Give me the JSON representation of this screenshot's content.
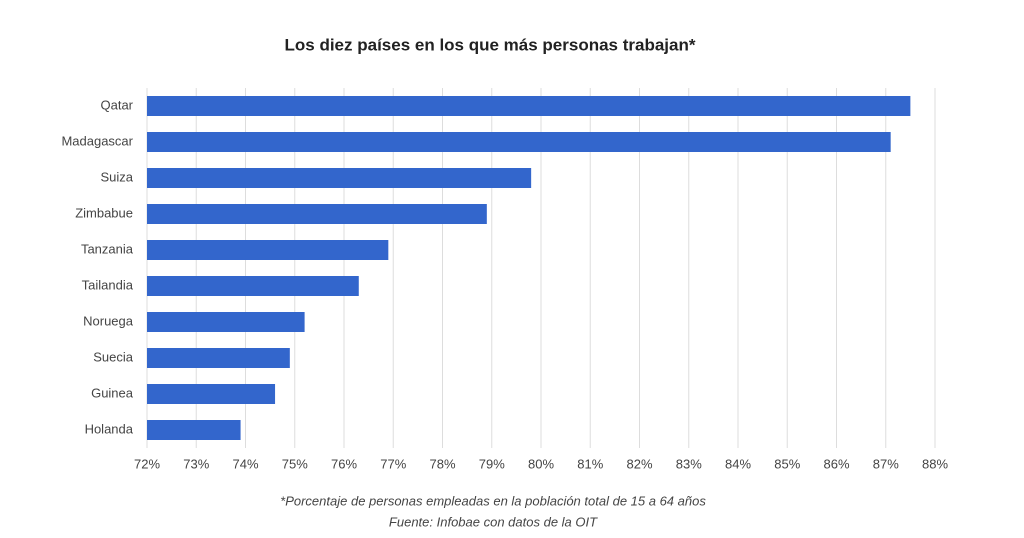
{
  "chart_data": {
    "type": "hbar",
    "title": "Los diez países en los que más personas trabajan*",
    "categories": [
      "Qatar",
      "Madagascar",
      "Suiza",
      "Zimbabue",
      "Tanzania",
      "Tailandia",
      "Noruega",
      "Suecia",
      "Guinea",
      "Holanda"
    ],
    "values": [
      87.5,
      87.1,
      79.8,
      78.9,
      76.9,
      76.3,
      75.2,
      74.9,
      74.6,
      73.9
    ],
    "color": "#3366cc",
    "xlim": [
      72,
      88
    ],
    "xticks": [
      {
        "value": 72,
        "label": "72%"
      },
      {
        "value": 73,
        "label": "73%"
      },
      {
        "value": 74,
        "label": "74%"
      },
      {
        "value": 75,
        "label": "75%"
      },
      {
        "value": 76,
        "label": "76%"
      },
      {
        "value": 77,
        "label": "77%"
      },
      {
        "value": 78,
        "label": "78%"
      },
      {
        "value": 79,
        "label": "79%"
      },
      {
        "value": 80,
        "label": "80%"
      },
      {
        "value": 81,
        "label": "81%"
      },
      {
        "value": 82,
        "label": "82%"
      },
      {
        "value": 83,
        "label": "83%"
      },
      {
        "value": 84,
        "label": "84%"
      },
      {
        "value": 85,
        "label": "85%"
      },
      {
        "value": 86,
        "label": "86%"
      },
      {
        "value": 87,
        "label": "87%"
      },
      {
        "value": 88,
        "label": "88%"
      }
    ],
    "grid": true,
    "footnotes": [
      "*Porcentaje de personas empleadas en la población total de 15 a 64 años",
      "Fuente: Infobae con datos de la OIT"
    ]
  }
}
